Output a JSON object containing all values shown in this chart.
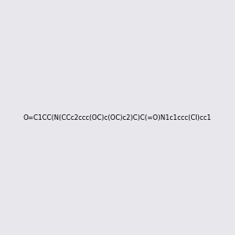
{
  "smiles": "O=C1CC(N(CCc2ccc(OC)c(OC)c2)C)C(=O)N1c1ccc(Cl)cc1",
  "image_size": 300,
  "background_color": "#e8e8ec",
  "bond_color": "#000000",
  "atom_colors": {
    "N": "#0000ff",
    "O": "#ff0000",
    "Cl": "#00aa00",
    "C": "#000000"
  },
  "title": ""
}
